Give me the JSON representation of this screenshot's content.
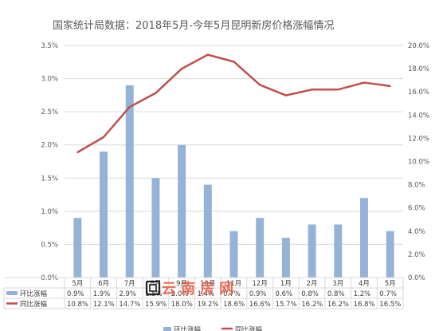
{
  "chart_data": {
    "type": "bar+line",
    "title": "国家统计局数据：2018年5月-今年5月昆明新房价格涨幅情况",
    "categories": [
      "5月",
      "6月",
      "7月",
      "8月",
      "9月",
      "10月",
      "11月",
      "12月",
      "1月",
      "2月",
      "3月",
      "4月",
      "5月"
    ],
    "series": [
      {
        "name": "环比涨幅",
        "type": "bar",
        "axis": "left",
        "values": [
          0.9,
          1.9,
          2.9,
          1.5,
          2.0,
          1.4,
          0.7,
          0.9,
          0.6,
          0.8,
          0.8,
          1.2,
          0.7
        ],
        "table_labels": [
          "0.9%",
          "1.9%",
          "2.9%",
          "1.5%",
          "2.0%",
          "1.4%",
          "0.7%",
          "0.9%",
          "0.6%",
          "0.8%",
          "0.8%",
          "1.2%",
          "0.7%"
        ],
        "color": "#95b3d7"
      },
      {
        "name": "同比涨幅",
        "type": "line",
        "axis": "right",
        "values": [
          10.8,
          12.1,
          14.7,
          15.9,
          18.0,
          19.2,
          18.6,
          16.6,
          15.7,
          16.2,
          16.2,
          16.8,
          16.5
        ],
        "table_labels": [
          "10.8%",
          "12.1%",
          "14.7%",
          "15.9%",
          "18.0%",
          "19.2%",
          "18.6%",
          "16.6%",
          "15.7%",
          "16.2%",
          "16.2%",
          "16.8%",
          "16.5%"
        ],
        "color": "#c0504d"
      }
    ],
    "y_left": {
      "ylim": [
        0,
        3.5
      ],
      "ticks": [
        "0.0%",
        "0.5%",
        "1.0%",
        "1.5%",
        "2.0%",
        "2.5%",
        "3.0%",
        "3.5%"
      ]
    },
    "y_right": {
      "ylim": [
        0,
        20
      ],
      "ticks": [
        "0.0%",
        "2.0%",
        "4.0%",
        "6.0%",
        "8.0%",
        "10.0%",
        "12.0%",
        "14.0%",
        "16.0%",
        "18.0%",
        "20.0%"
      ]
    },
    "grid": true,
    "legend": "data-table"
  },
  "watermark": {
    "text": "云南房网"
  },
  "bottom_legend": {
    "bar_label": "环比涨幅",
    "line_label": "同比涨幅"
  }
}
